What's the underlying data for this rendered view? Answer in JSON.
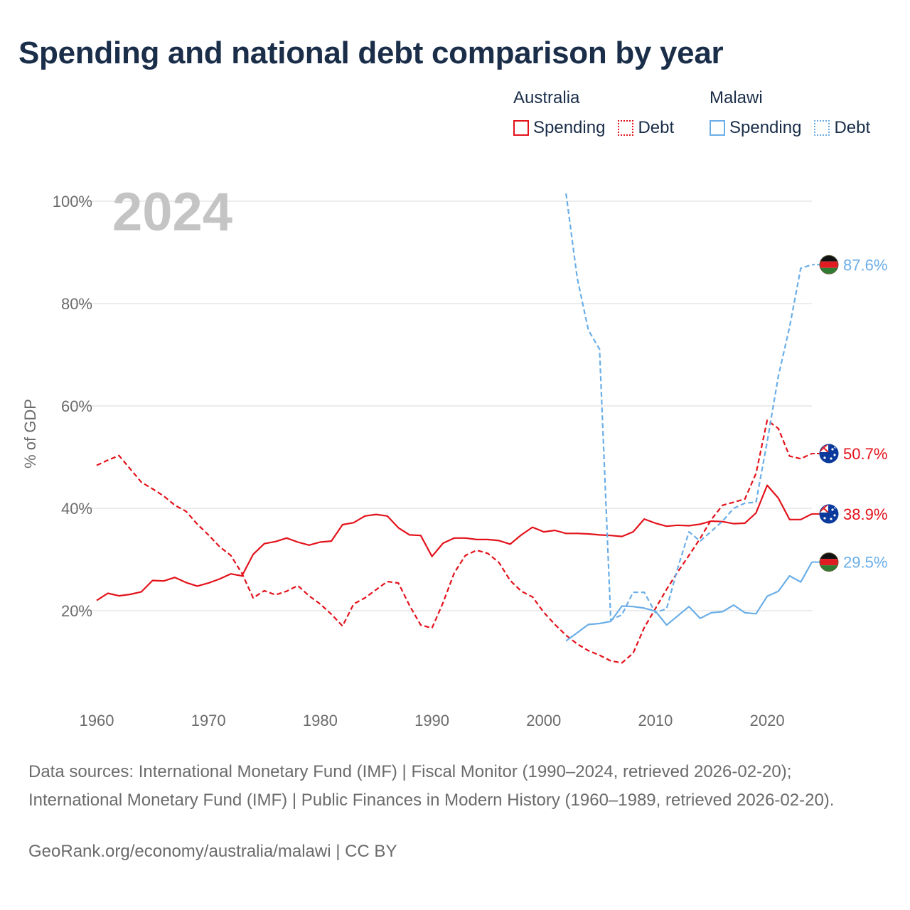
{
  "title": "Spending and national debt comparison by year",
  "legend": {
    "groups": [
      {
        "name": "Australia",
        "color": "#e3121b",
        "spending_label": "Spending",
        "debt_label": "Debt"
      },
      {
        "name": "Malawi",
        "color": "#6aaee8",
        "spending_label": "Spending",
        "debt_label": "Debt"
      }
    ]
  },
  "year_label": "2024",
  "sources_text": "Data sources: International Monetary Fund (IMF) | Fiscal Monitor (1990–2024, retrieved 2026-02-20); International Monetary Fund (IMF) | Public Finances in Modern History (1960–1989, retrieved 2026-02-20).",
  "credit_text": "GeoRank.org/economy/australia/malawi | CC BY",
  "chart_data": {
    "type": "line",
    "title": "Spending and national debt comparison by year",
    "xlabel": "",
    "ylabel": "% of GDP",
    "xlim": [
      1960,
      2024
    ],
    "ylim": [
      0,
      100
    ],
    "x_ticks": [
      1960,
      1970,
      1980,
      1990,
      2000,
      2010,
      2020
    ],
    "y_ticks": [
      20,
      40,
      60,
      80,
      100
    ],
    "y_tick_labels": [
      "20%",
      "40%",
      "60%",
      "80%",
      "100%"
    ],
    "grid": true,
    "series": [
      {
        "name": "Australia Spending",
        "country": "Australia",
        "kind": "spending",
        "color": "#e3121b",
        "dash": "solid",
        "end_label": "38.9%",
        "end_value": 38.9,
        "points": [
          [
            1960,
            22
          ],
          [
            1961,
            23.4
          ],
          [
            1962,
            22.9
          ],
          [
            1963,
            23.2
          ],
          [
            1964,
            23.7
          ],
          [
            1965,
            25.9
          ],
          [
            1966,
            25.8
          ],
          [
            1967,
            26.5
          ],
          [
            1968,
            25.5
          ],
          [
            1969,
            24.8
          ],
          [
            1970,
            25.4
          ],
          [
            1971,
            26.2
          ],
          [
            1972,
            27.2
          ],
          [
            1973,
            26.8
          ],
          [
            1974,
            31
          ],
          [
            1975,
            33.1
          ],
          [
            1976,
            33.5
          ],
          [
            1977,
            34.2
          ],
          [
            1978,
            33.4
          ],
          [
            1979,
            32.8
          ],
          [
            1980,
            33.4
          ],
          [
            1981,
            33.6
          ],
          [
            1982,
            36.8
          ],
          [
            1983,
            37.2
          ],
          [
            1984,
            38.5
          ],
          [
            1985,
            38.8
          ],
          [
            1986,
            38.5
          ],
          [
            1987,
            36.2
          ],
          [
            1988,
            34.8
          ],
          [
            1989,
            34.7
          ],
          [
            1990,
            30.6
          ],
          [
            1991,
            33.2
          ],
          [
            1992,
            34.2
          ],
          [
            1993,
            34.2
          ],
          [
            1994,
            33.9
          ],
          [
            1995,
            33.9
          ],
          [
            1996,
            33.7
          ],
          [
            1997,
            33
          ],
          [
            1998,
            34.8
          ],
          [
            1999,
            36.3
          ],
          [
            2000,
            35.4
          ],
          [
            2001,
            35.7
          ],
          [
            2002,
            35.1
          ],
          [
            2003,
            35.1
          ],
          [
            2004,
            35
          ],
          [
            2005,
            34.8
          ],
          [
            2006,
            34.7
          ],
          [
            2007,
            34.5
          ],
          [
            2008,
            35.4
          ],
          [
            2009,
            37.9
          ],
          [
            2010,
            37.1
          ],
          [
            2011,
            36.5
          ],
          [
            2012,
            36.7
          ],
          [
            2013,
            36.6
          ],
          [
            2014,
            36.9
          ],
          [
            2015,
            37.5
          ],
          [
            2016,
            37.4
          ],
          [
            2017,
            37
          ],
          [
            2018,
            37.1
          ],
          [
            2019,
            39.1
          ],
          [
            2020,
            44.5
          ],
          [
            2021,
            42
          ],
          [
            2022,
            37.8
          ],
          [
            2023,
            37.8
          ],
          [
            2024,
            38.9
          ]
        ]
      },
      {
        "name": "Australia Debt",
        "country": "Australia",
        "kind": "debt",
        "color": "#e3121b",
        "dash": "dashed",
        "end_label": "50.7%",
        "end_value": 50.7,
        "points": [
          [
            1960,
            48.4
          ],
          [
            1961,
            49.4
          ],
          [
            1962,
            50.3
          ],
          [
            1963,
            47.7
          ],
          [
            1964,
            45.1
          ],
          [
            1965,
            43.8
          ],
          [
            1966,
            42.4
          ],
          [
            1967,
            40.6
          ],
          [
            1968,
            39.4
          ],
          [
            1969,
            36.9
          ],
          [
            1970,
            34.8
          ],
          [
            1971,
            32.5
          ],
          [
            1972,
            30.8
          ],
          [
            1973,
            27.3
          ],
          [
            1974,
            22.5
          ],
          [
            1975,
            23.9
          ],
          [
            1976,
            23.1
          ],
          [
            1977,
            23.8
          ],
          [
            1978,
            24.9
          ],
          [
            1979,
            22.9
          ],
          [
            1980,
            21.3
          ],
          [
            1981,
            19.3
          ],
          [
            1982,
            17
          ],
          [
            1983,
            21.3
          ],
          [
            1984,
            22.5
          ],
          [
            1985,
            24.1
          ],
          [
            1986,
            25.7
          ],
          [
            1987,
            25.4
          ],
          [
            1988,
            21
          ],
          [
            1989,
            17.2
          ],
          [
            1990,
            16.6
          ],
          [
            1991,
            21.6
          ],
          [
            1992,
            27.4
          ],
          [
            1993,
            30.8
          ],
          [
            1994,
            31.8
          ],
          [
            1995,
            31.2
          ],
          [
            1996,
            29.4
          ],
          [
            1997,
            25.9
          ],
          [
            1998,
            23.8
          ],
          [
            1999,
            22.7
          ],
          [
            2000,
            19.7
          ],
          [
            2001,
            17.3
          ],
          [
            2002,
            15.2
          ],
          [
            2003,
            13.5
          ],
          [
            2004,
            12.2
          ],
          [
            2005,
            11.3
          ],
          [
            2006,
            10.2
          ],
          [
            2007,
            9.8
          ],
          [
            2008,
            11.7
          ],
          [
            2009,
            16.7
          ],
          [
            2010,
            20.4
          ],
          [
            2011,
            24.2
          ],
          [
            2012,
            27.6
          ],
          [
            2013,
            30.8
          ],
          [
            2014,
            34.1
          ],
          [
            2015,
            37.8
          ],
          [
            2016,
            40.6
          ],
          [
            2017,
            41.2
          ],
          [
            2018,
            41.8
          ],
          [
            2019,
            46.8
          ],
          [
            2020,
            57.2
          ],
          [
            2021,
            55.6
          ],
          [
            2022,
            50.2
          ],
          [
            2023,
            49.7
          ],
          [
            2024,
            50.7
          ]
        ]
      },
      {
        "name": "Malawi Spending",
        "country": "Malawi",
        "kind": "spending",
        "color": "#6aaee8",
        "dash": "solid",
        "end_label": "29.5%",
        "end_value": 29.5,
        "points": [
          [
            2002,
            14.1
          ],
          [
            2003,
            15.7
          ],
          [
            2004,
            17.3
          ],
          [
            2005,
            17.5
          ],
          [
            2006,
            17.9
          ],
          [
            2007,
            20.9
          ],
          [
            2008,
            20.8
          ],
          [
            2009,
            20.5
          ],
          [
            2010,
            19.9
          ],
          [
            2011,
            17.2
          ],
          [
            2012,
            19
          ],
          [
            2013,
            20.8
          ],
          [
            2014,
            18.5
          ],
          [
            2015,
            19.6
          ],
          [
            2016,
            19.8
          ],
          [
            2017,
            21.1
          ],
          [
            2018,
            19.6
          ],
          [
            2019,
            19.4
          ],
          [
            2020,
            22.8
          ],
          [
            2021,
            23.8
          ],
          [
            2022,
            26.8
          ],
          [
            2023,
            25.6
          ],
          [
            2024,
            29.5
          ]
        ]
      },
      {
        "name": "Malawi Debt",
        "country": "Malawi",
        "kind": "debt",
        "color": "#6aaee8",
        "dash": "dashed",
        "end_label": "87.6%",
        "end_value": 87.6,
        "points": [
          [
            2002,
            101.5
          ],
          [
            2003,
            85
          ],
          [
            2004,
            74.8
          ],
          [
            2005,
            71.1
          ],
          [
            2006,
            18.2
          ],
          [
            2007,
            19.2
          ],
          [
            2008,
            23.6
          ],
          [
            2009,
            23.6
          ],
          [
            2010,
            19.6
          ],
          [
            2011,
            20.4
          ],
          [
            2012,
            28.4
          ],
          [
            2013,
            35.4
          ],
          [
            2014,
            33.6
          ],
          [
            2015,
            35.5
          ],
          [
            2016,
            37.5
          ],
          [
            2017,
            40
          ],
          [
            2018,
            41
          ],
          [
            2019,
            41.2
          ],
          [
            2020,
            53
          ],
          [
            2021,
            65.8
          ],
          [
            2022,
            75.4
          ],
          [
            2023,
            86.9
          ],
          [
            2024,
            87.6
          ]
        ]
      }
    ]
  }
}
